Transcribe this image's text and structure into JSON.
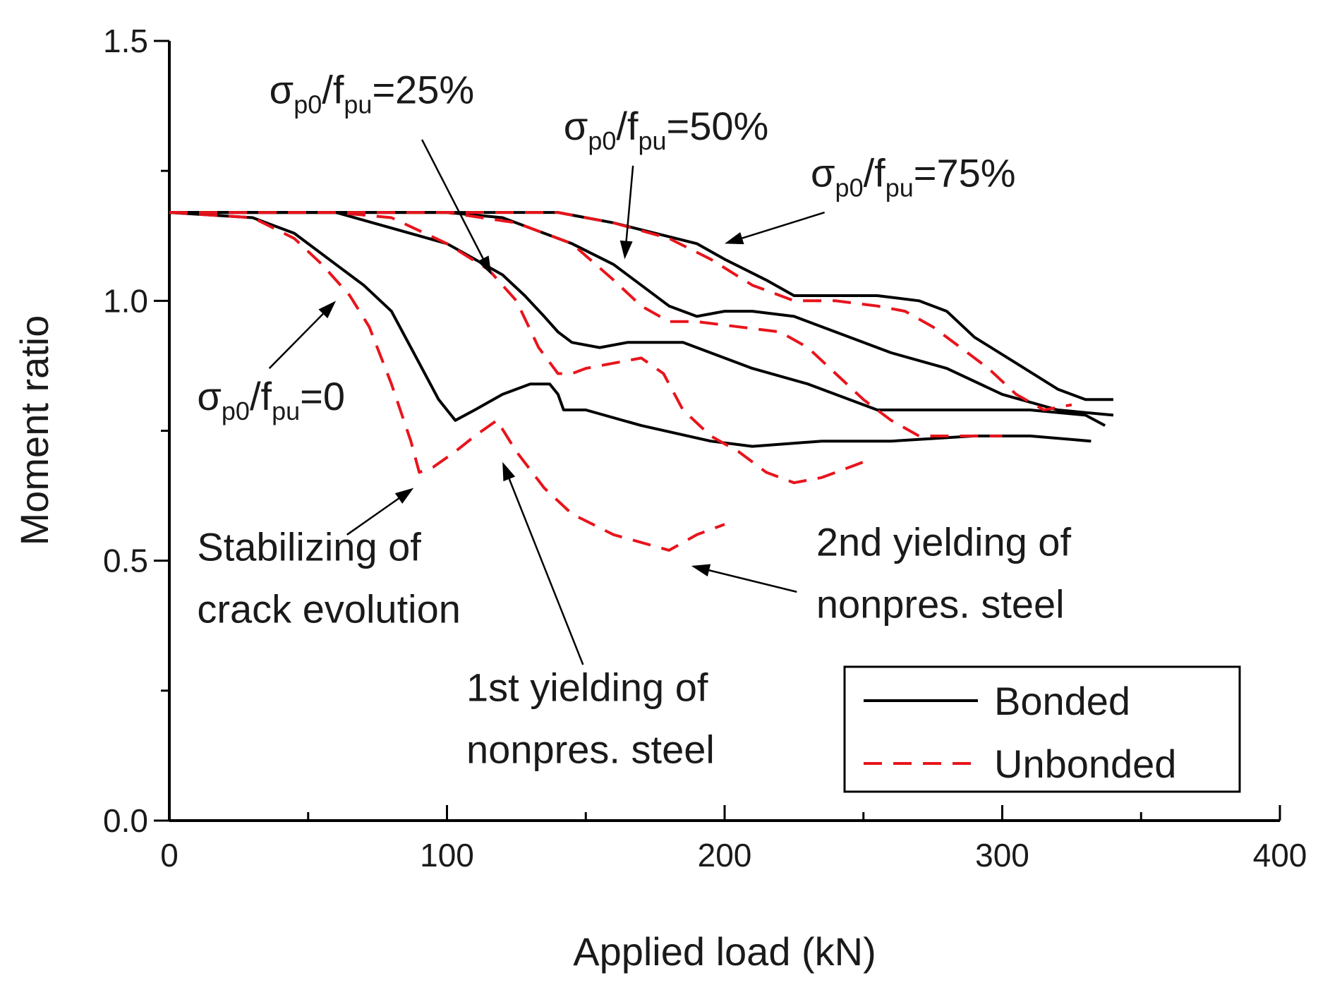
{
  "chart_data": {
    "type": "line",
    "xlabel": "Applied load (kN)",
    "ylabel": "Moment ratio",
    "xlim": [
      0,
      400
    ],
    "ylim": [
      0.0,
      1.5
    ],
    "x_ticks": [
      0,
      100,
      200,
      300,
      400
    ],
    "x_tick_labels": [
      "0",
      "100",
      "200",
      "300",
      "400"
    ],
    "y_ticks": [
      0.0,
      0.5,
      1.0,
      1.5
    ],
    "y_tick_labels": [
      "0.0",
      "0.5",
      "1.0",
      "1.5"
    ],
    "grid": false,
    "legend": {
      "position": "bottom-right",
      "entries": [
        {
          "label": "Bonded",
          "color": "#000000",
          "style": "solid"
        },
        {
          "label": "Unbonded",
          "color": "#e8141c",
          "style": "dashed"
        }
      ]
    },
    "series": [
      {
        "name": "Bonded, σp0/fpu=0",
        "group": "Bonded",
        "color": "#000000",
        "style": "solid",
        "x": [
          0,
          30,
          45,
          60,
          70,
          80,
          90,
          97,
          103,
          110,
          120,
          130,
          137,
          140,
          142,
          150,
          170,
          195,
          210,
          235,
          260,
          290,
          310,
          332
        ],
        "y": [
          1.17,
          1.16,
          1.13,
          1.07,
          1.03,
          0.98,
          0.88,
          0.81,
          0.77,
          0.79,
          0.82,
          0.84,
          0.84,
          0.82,
          0.79,
          0.79,
          0.76,
          0.73,
          0.72,
          0.73,
          0.73,
          0.74,
          0.74,
          0.73
        ]
      },
      {
        "name": "Unbonded, σp0/fpu=0",
        "group": "Unbonded",
        "color": "#e8141c",
        "style": "dashed",
        "x": [
          0,
          30,
          45,
          55,
          65,
          72,
          80,
          87,
          90,
          95,
          103,
          110,
          118,
          125,
          135,
          145,
          160,
          180,
          190,
          200
        ],
        "y": [
          1.17,
          1.16,
          1.12,
          1.07,
          1.01,
          0.95,
          0.84,
          0.73,
          0.67,
          0.68,
          0.71,
          0.74,
          0.77,
          0.71,
          0.64,
          0.59,
          0.55,
          0.52,
          0.55,
          0.57
        ]
      },
      {
        "name": "Bonded, σp0/fpu=25%",
        "group": "Bonded",
        "color": "#000000",
        "style": "solid",
        "x": [
          0,
          60,
          80,
          100,
          110,
          120,
          128,
          135,
          140,
          145,
          155,
          165,
          175,
          185,
          195,
          210,
          230,
          255,
          280,
          310,
          330,
          337
        ],
        "y": [
          1.17,
          1.17,
          1.14,
          1.11,
          1.08,
          1.05,
          1.01,
          0.97,
          0.94,
          0.92,
          0.91,
          0.92,
          0.92,
          0.92,
          0.9,
          0.87,
          0.84,
          0.79,
          0.79,
          0.79,
          0.78,
          0.76
        ]
      },
      {
        "name": "Unbonded, σp0/fpu=25%",
        "group": "Unbonded",
        "color": "#e8141c",
        "style": "dashed",
        "x": [
          0,
          60,
          80,
          100,
          115,
          125,
          133,
          140,
          145,
          150,
          160,
          170,
          178,
          185,
          195,
          205,
          215,
          225,
          235,
          245,
          250
        ],
        "y": [
          1.17,
          1.17,
          1.16,
          1.11,
          1.06,
          1.0,
          0.91,
          0.86,
          0.86,
          0.87,
          0.88,
          0.89,
          0.86,
          0.79,
          0.74,
          0.71,
          0.67,
          0.65,
          0.66,
          0.68,
          0.69
        ]
      },
      {
        "name": "Bonded, σp0/fpu=50%",
        "group": "Bonded",
        "color": "#000000",
        "style": "solid",
        "x": [
          0,
          100,
          120,
          145,
          160,
          170,
          180,
          190,
          200,
          210,
          225,
          240,
          260,
          280,
          300,
          320,
          340
        ],
        "y": [
          1.17,
          1.17,
          1.16,
          1.11,
          1.07,
          1.03,
          0.99,
          0.97,
          0.98,
          0.98,
          0.97,
          0.94,
          0.9,
          0.87,
          0.82,
          0.79,
          0.78
        ]
      },
      {
        "name": "Unbonded, σp0/fpu=50%",
        "group": "Unbonded",
        "color": "#e8141c",
        "style": "dashed",
        "x": [
          0,
          100,
          125,
          145,
          160,
          170,
          180,
          190,
          205,
          220,
          230,
          240,
          250,
          260,
          270,
          285,
          300
        ],
        "y": [
          1.17,
          1.17,
          1.15,
          1.11,
          1.04,
          0.99,
          0.96,
          0.96,
          0.95,
          0.94,
          0.91,
          0.86,
          0.81,
          0.77,
          0.74,
          0.74,
          0.74
        ]
      },
      {
        "name": "Bonded, σp0/fpu=75%",
        "group": "Bonded",
        "color": "#000000",
        "style": "solid",
        "x": [
          0,
          140,
          150,
          160,
          175,
          190,
          200,
          215,
          225,
          240,
          255,
          270,
          280,
          290,
          305,
          320,
          330,
          340
        ],
        "y": [
          1.17,
          1.17,
          1.16,
          1.15,
          1.13,
          1.11,
          1.08,
          1.04,
          1.01,
          1.01,
          1.01,
          1.0,
          0.98,
          0.93,
          0.88,
          0.83,
          0.81,
          0.81
        ]
      },
      {
        "name": "Unbonded, σp0/fpu=75%",
        "group": "Unbonded",
        "color": "#e8141c",
        "style": "dashed",
        "x": [
          0,
          140,
          160,
          180,
          195,
          210,
          225,
          240,
          255,
          265,
          275,
          285,
          295,
          305,
          315,
          325
        ],
        "y": [
          1.17,
          1.17,
          1.15,
          1.12,
          1.08,
          1.03,
          1.0,
          1.0,
          0.99,
          0.98,
          0.95,
          0.91,
          0.87,
          0.82,
          0.79,
          0.8
        ]
      }
    ],
    "curve_labels": [
      {
        "symbol": "σ",
        "subscript_1": "p0",
        "middle": "/f",
        "subscript_2": "pu",
        "value": "=25%",
        "x": 36,
        "y": 1.38
      },
      {
        "symbol": "σ",
        "subscript_1": "p0",
        "middle": "/f",
        "subscript_2": "pu",
        "value": "=50%",
        "x": 142,
        "y": 1.31
      },
      {
        "symbol": "σ",
        "subscript_1": "p0",
        "middle": "/f",
        "subscript_2": "pu",
        "value": "=75%",
        "x": 231,
        "y": 1.22
      },
      {
        "symbol": "σ",
        "subscript_1": "p0",
        "middle": "/f",
        "subscript_2": "pu",
        "value": "=0",
        "x": 10,
        "y": 0.79
      }
    ],
    "annotations": [
      {
        "lines": [
          "Stabilizing of",
          "crack evolution"
        ],
        "x": 10,
        "y": 0.5
      },
      {
        "lines": [
          "1st yielding of",
          "nonpres. steel"
        ],
        "x": 107,
        "y": 0.23
      },
      {
        "lines": [
          "2nd yielding of",
          "nonpres. steel"
        ],
        "x": 233,
        "y": 0.51
      }
    ],
    "arrows": [
      {
        "from": [
          91,
          1.31
        ],
        "to": [
          116,
          1.05
        ]
      },
      {
        "from": [
          167,
          1.26
        ],
        "to": [
          164,
          1.08
        ]
      },
      {
        "from": [
          236,
          1.17
        ],
        "to": [
          200,
          1.11
        ]
      },
      {
        "from": [
          36,
          0.87
        ],
        "to": [
          60,
          1.0
        ]
      },
      {
        "from": [
          64,
          0.55
        ],
        "to": [
          88,
          0.64
        ]
      },
      {
        "from": [
          149,
          0.3
        ],
        "to": [
          120,
          0.69
        ]
      },
      {
        "from": [
          226,
          0.44
        ],
        "to": [
          188,
          0.49
        ]
      }
    ]
  }
}
